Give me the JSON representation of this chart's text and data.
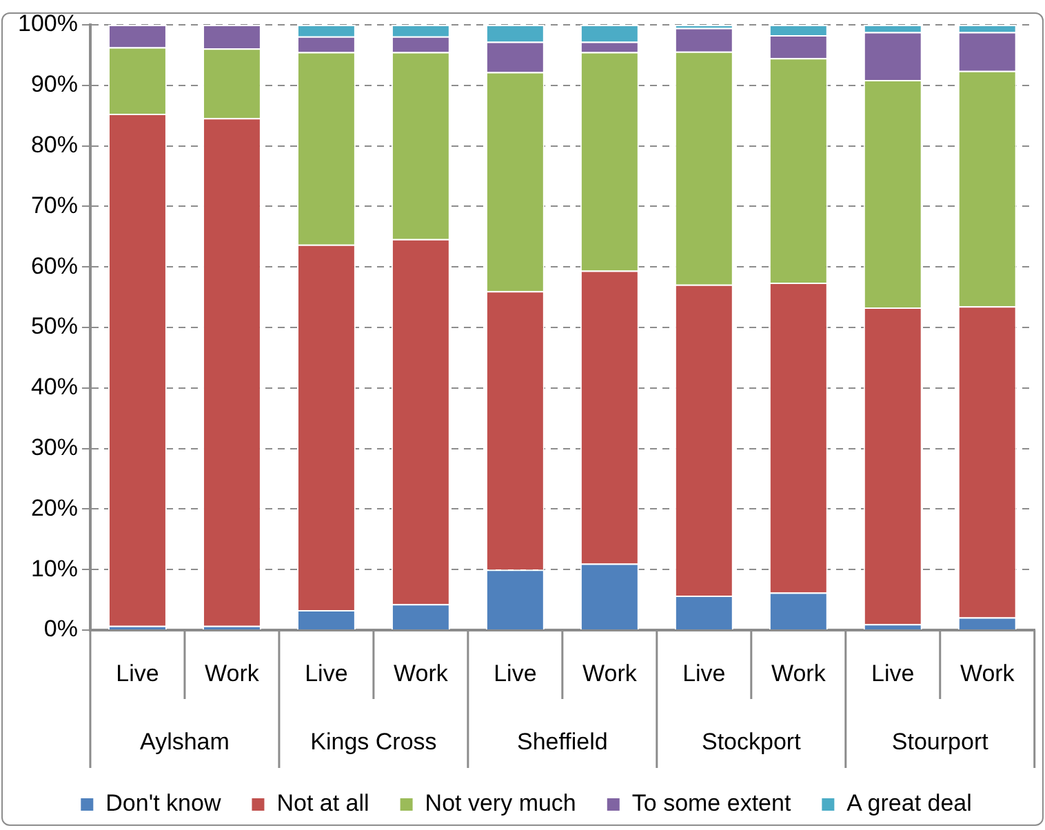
{
  "chart_data": {
    "type": "bar",
    "stacked": true,
    "categories": [
      "Live",
      "Work",
      "Live",
      "Work",
      "Live",
      "Work",
      "Live",
      "Work",
      "Live",
      "Work"
    ],
    "annotations": [
      "Aylsham",
      "Kings Cross",
      "Sheffield",
      "Stockport",
      "Stourport"
    ],
    "series": [
      {
        "name": "Don't know",
        "color": "#4f81bd",
        "values": [
          0.7,
          0.7,
          3.3,
          4.3,
          10,
          11,
          5.7,
          6.2,
          1.0,
          2.1
        ]
      },
      {
        "name": "Not at all",
        "color": "#c0504d",
        "values": [
          84.6,
          83.9,
          60.4,
          60.3,
          46,
          48.4,
          51.4,
          51.2,
          52.3,
          51.4
        ]
      },
      {
        "name": "Not very much",
        "color": "#9bbb59",
        "values": [
          11.0,
          11.5,
          31.8,
          30.9,
          36.2,
          36.1,
          38.5,
          37.1,
          37.6,
          38.9
        ]
      },
      {
        "name": "To some extent",
        "color": "#8064a2",
        "values": [
          3.7,
          3.9,
          2.6,
          2.6,
          5,
          1.7,
          3.9,
          3.8,
          7.9,
          6.4
        ]
      },
      {
        "name": "A great deal",
        "color": "#4bacc6",
        "values": [
          0,
          0,
          1.9,
          1.9,
          2.8,
          2.8,
          0.5,
          1.7,
          1.2,
          1.2
        ]
      }
    ],
    "ylim": [
      0,
      100
    ],
    "yticks": [
      {
        "value": 0,
        "label": "0%"
      },
      {
        "value": 10,
        "label": "10%"
      },
      {
        "value": 20,
        "label": "20%"
      },
      {
        "value": 30,
        "label": "30%"
      },
      {
        "value": 40,
        "label": "40%"
      },
      {
        "value": 50,
        "label": "50%"
      },
      {
        "value": 60,
        "label": "60%"
      },
      {
        "value": 70,
        "label": "70%"
      },
      {
        "value": 80,
        "label": "80%"
      },
      {
        "value": 90,
        "label": "90%"
      },
      {
        "value": 100,
        "label": "100%"
      }
    ],
    "grid": "y",
    "legend": "bottom"
  }
}
